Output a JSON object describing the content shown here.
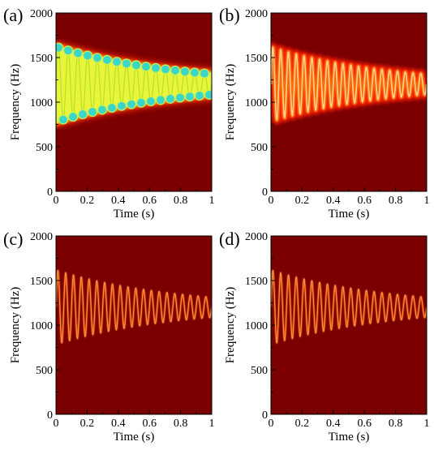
{
  "figure": {
    "background_color": "#7a0000"
  },
  "chart_data": [
    {
      "type": "heatmap",
      "panel_label": "(a)",
      "title": "",
      "xlabel": "Time (s)",
      "ylabel": "Frequency (Hz)",
      "xlim": [
        0,
        1
      ],
      "ylim": [
        0,
        2000
      ],
      "xticks": [
        "0",
        "0.2",
        "0.4",
        "0.6",
        "0.8",
        "1"
      ],
      "yticks": [
        "0",
        "500",
        "1000",
        "1500",
        "2000"
      ],
      "style": "wide",
      "signal": {
        "center_hz": 1200,
        "amp_start_hz": 420,
        "amp_decay_per_s": 1.3,
        "osc_hz": 16
      },
      "grid": false
    },
    {
      "type": "heatmap",
      "panel_label": "(b)",
      "title": "",
      "xlabel": "Time (s)",
      "ylabel": "Frequency (Hz)",
      "xlim": [
        0,
        1
      ],
      "ylim": [
        0,
        2000
      ],
      "xticks": [
        "0",
        "0.2",
        "0.4",
        "0.6",
        "0.8",
        "1"
      ],
      "yticks": [
        "0",
        "500",
        "1000",
        "1500",
        "2000"
      ],
      "style": "medium",
      "signal": {
        "center_hz": 1200,
        "amp_start_hz": 420,
        "amp_decay_per_s": 1.3,
        "osc_hz": 20
      },
      "grid": false
    },
    {
      "type": "heatmap",
      "panel_label": "(c)",
      "title": "",
      "xlabel": "Time (s)",
      "ylabel": "Frequency (Hz)",
      "xlim": [
        0,
        1
      ],
      "ylim": [
        0,
        2000
      ],
      "xticks": [
        "0",
        "0.2",
        "0.4",
        "0.6",
        "0.8",
        "1"
      ],
      "yticks": [
        "0",
        "500",
        "1000",
        "1500",
        "2000"
      ],
      "style": "thin",
      "signal": {
        "center_hz": 1200,
        "amp_start_hz": 420,
        "amp_decay_per_s": 1.3,
        "osc_hz": 20
      },
      "grid": false
    },
    {
      "type": "heatmap",
      "panel_label": "(d)",
      "title": "",
      "xlabel": "Time (s)",
      "ylabel": "Frequency (Hz)",
      "xlim": [
        0,
        1
      ],
      "ylim": [
        0,
        2000
      ],
      "xticks": [
        "0",
        "0.2",
        "0.4",
        "0.6",
        "0.8",
        "1"
      ],
      "yticks": [
        "0",
        "500",
        "1000",
        "1500",
        "2000"
      ],
      "style": "thin",
      "signal": {
        "center_hz": 1200,
        "amp_start_hz": 420,
        "amp_decay_per_s": 1.3,
        "osc_hz": 20
      },
      "grid": false
    }
  ]
}
